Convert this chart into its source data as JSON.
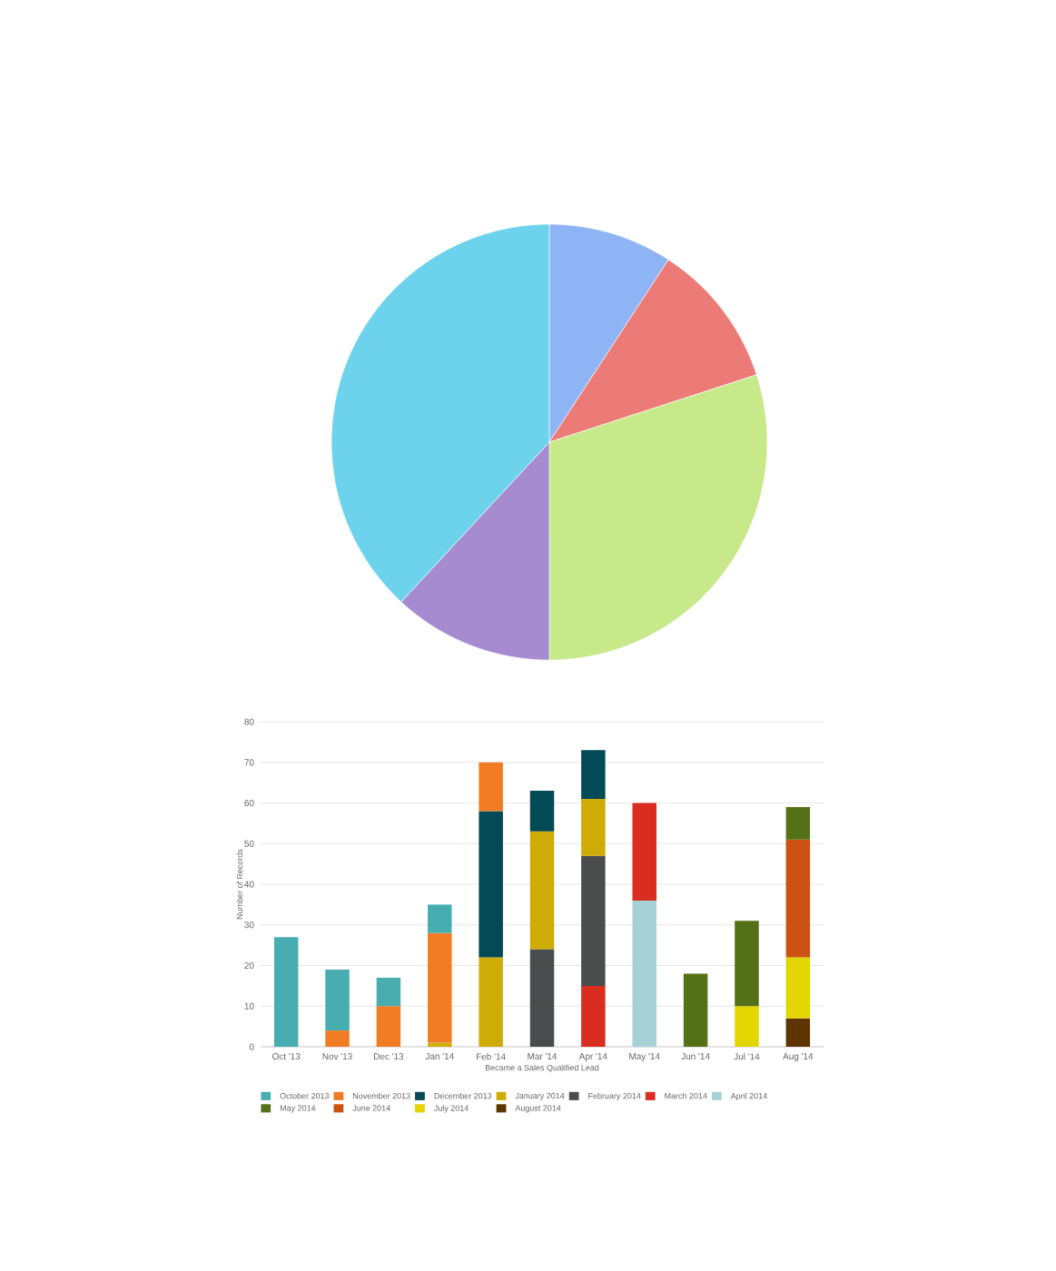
{
  "chart_data": [
    {
      "type": "pie",
      "categories": [
        null,
        null,
        null,
        null,
        null
      ],
      "values": [
        9.2,
        10.8,
        30.0,
        11.9,
        38.1
      ],
      "colors": [
        "#8fb4f5",
        "#ec7b77",
        "#c8e98a",
        "#a68bd0",
        "#6dd3ec"
      ]
    },
    {
      "type": "bar",
      "stacked": true,
      "xlabel": "Became a Sales Qualified Lead",
      "ylabel": "Number of Records",
      "categories": [
        "Oct '13",
        "Nov '13",
        "Dec '13",
        "Jan '14",
        "Feb '14",
        "Mar '14",
        "Apr '14",
        "May '14",
        "Jun '14",
        "Jul '14",
        "Aug '14"
      ],
      "ylim": [
        0,
        80
      ],
      "yticks": [
        0,
        10,
        20,
        30,
        40,
        50,
        60,
        70,
        80
      ],
      "grid": "y",
      "legend": "bottom",
      "series": [
        {
          "name": "August 2014",
          "color": "#5e3500",
          "values": [
            null,
            null,
            null,
            null,
            null,
            null,
            null,
            null,
            null,
            null,
            7
          ]
        },
        {
          "name": "July 2014",
          "color": "#e3d600",
          "values": [
            null,
            null,
            null,
            null,
            null,
            null,
            null,
            null,
            null,
            10,
            15
          ]
        },
        {
          "name": "June 2014",
          "color": "#cc5212",
          "values": [
            null,
            null,
            null,
            null,
            null,
            null,
            null,
            null,
            null,
            null,
            29
          ]
        },
        {
          "name": "May 2014",
          "color": "#557118",
          "values": [
            null,
            null,
            null,
            null,
            null,
            null,
            null,
            null,
            18,
            21,
            8
          ]
        },
        {
          "name": "April 2014",
          "color": "#a6d2d7",
          "values": [
            null,
            null,
            null,
            null,
            null,
            null,
            null,
            36,
            null,
            null,
            null
          ]
        },
        {
          "name": "March 2014",
          "color": "#da2d20",
          "values": [
            null,
            null,
            null,
            null,
            null,
            null,
            15,
            24,
            null,
            null,
            null
          ]
        },
        {
          "name": "February 2014",
          "color": "#4b4c4e",
          "values": [
            null,
            null,
            null,
            null,
            null,
            24,
            32,
            null,
            null,
            null,
            null
          ]
        },
        {
          "name": "January 2014",
          "color": "#cfab05",
          "values": [
            null,
            null,
            null,
            1,
            22,
            29,
            14,
            null,
            null,
            null,
            null
          ]
        },
        {
          "name": "December 2013",
          "color": "#024a55",
          "values": [
            null,
            null,
            null,
            null,
            36,
            10,
            12,
            null,
            null,
            null,
            null
          ]
        },
        {
          "name": "November 2013",
          "color": "#f27c24",
          "values": [
            null,
            4,
            10,
            27,
            12,
            null,
            null,
            null,
            null,
            null,
            null
          ]
        },
        {
          "name": "October 2013",
          "color": "#47adb1",
          "values": [
            27,
            15,
            7,
            7,
            null,
            null,
            null,
            null,
            null,
            null,
            null
          ]
        }
      ]
    }
  ]
}
